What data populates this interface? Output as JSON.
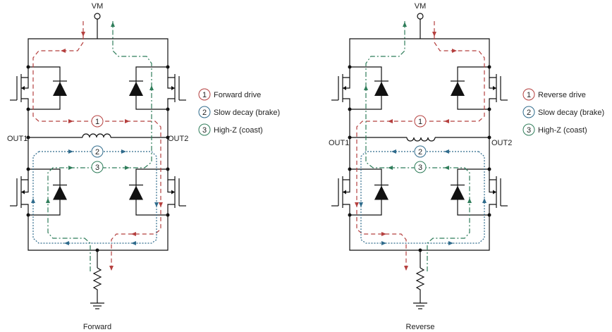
{
  "panels": [
    {
      "vm": "VM",
      "out1": "OUT1",
      "out2": "OUT2",
      "legend": [
        {
          "num": "1",
          "text": "Forward drive"
        },
        {
          "num": "2",
          "text": "Slow decay (brake)"
        },
        {
          "num": "3",
          "text": "High-Z (coast)"
        }
      ],
      "caption": "Forward"
    },
    {
      "vm": "VM",
      "out1": "OUT1",
      "out2": "OUT2",
      "legend": [
        {
          "num": "1",
          "text": "Reverse drive"
        },
        {
          "num": "2",
          "text": "Slow decay (brake)"
        },
        {
          "num": "3",
          "text": "High-Z (coast)"
        }
      ],
      "caption": "Reverse"
    }
  ]
}
